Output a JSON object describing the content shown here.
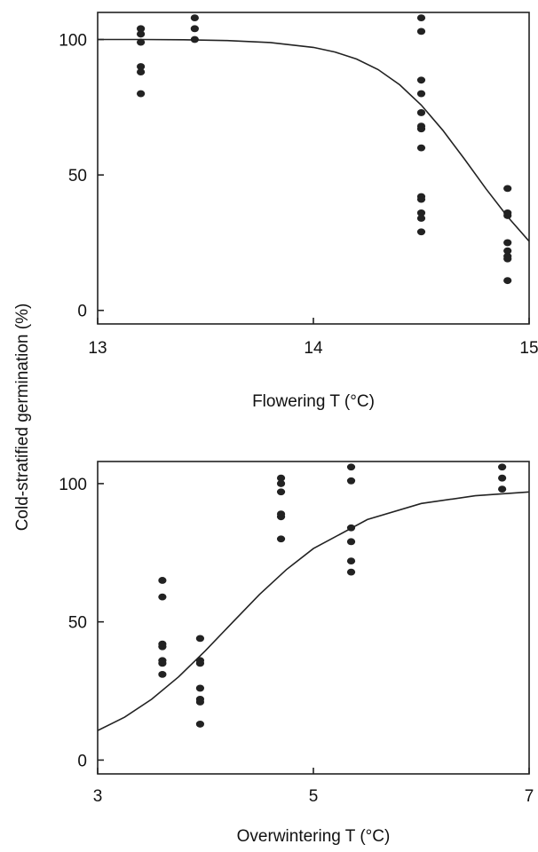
{
  "shared_ylabel": "Cold-stratified germination (%)",
  "chart_data": [
    {
      "type": "scatter",
      "title": "",
      "xlabel": "Flowering T (°C)",
      "ylabel": "Cold-stratified germination (%)",
      "xlim": [
        13,
        15
      ],
      "ylim": [
        -5,
        110
      ],
      "xticks": [
        13,
        14,
        15
      ],
      "yticks": [
        0,
        50,
        100
      ],
      "grid": false,
      "legend": "none",
      "series": [
        {
          "points": [
            [
              13.2,
              104
            ],
            [
              13.2,
              102
            ],
            [
              13.2,
              99
            ],
            [
              13.2,
              90
            ],
            [
              13.2,
              88
            ],
            [
              13.2,
              80
            ],
            [
              13.45,
              108
            ],
            [
              13.45,
              104
            ],
            [
              13.45,
              100
            ],
            [
              14.5,
              108
            ],
            [
              14.5,
              103
            ],
            [
              14.5,
              85
            ],
            [
              14.5,
              80
            ],
            [
              14.5,
              73
            ],
            [
              14.5,
              68
            ],
            [
              14.5,
              67
            ],
            [
              14.5,
              60
            ],
            [
              14.5,
              42
            ],
            [
              14.5,
              41
            ],
            [
              14.5,
              36
            ],
            [
              14.5,
              34
            ],
            [
              14.5,
              29
            ],
            [
              14.9,
              45
            ],
            [
              14.9,
              36
            ],
            [
              14.9,
              35
            ],
            [
              14.9,
              25
            ],
            [
              14.9,
              22
            ],
            [
              14.9,
              20
            ],
            [
              14.9,
              19
            ],
            [
              14.9,
              11
            ]
          ]
        },
        {
          "kind": "fitted-curve",
          "points": [
            [
              13.0,
              100.0
            ],
            [
              13.2,
              100.0
            ],
            [
              13.4,
              99.9
            ],
            [
              13.6,
              99.6
            ],
            [
              13.8,
              98.9
            ],
            [
              14.0,
              97.1
            ],
            [
              14.1,
              95.4
            ],
            [
              14.2,
              92.8
            ],
            [
              14.3,
              88.9
            ],
            [
              14.4,
              83.3
            ],
            [
              14.5,
              75.8
            ],
            [
              14.6,
              66.5
            ],
            [
              14.7,
              55.9
            ],
            [
              14.8,
              44.9
            ],
            [
              14.9,
              34.6
            ],
            [
              15.0,
              25.5
            ]
          ]
        }
      ]
    },
    {
      "type": "scatter",
      "title": "",
      "xlabel": "Overwintering T (°C)",
      "ylabel": "Cold-stratified germination (%)",
      "xlim": [
        3,
        7
      ],
      "ylim": [
        -5,
        108
      ],
      "xticks": [
        3,
        5,
        7
      ],
      "yticks": [
        0,
        50,
        100
      ],
      "grid": false,
      "legend": "none",
      "series": [
        {
          "points": [
            [
              3.6,
              65
            ],
            [
              3.6,
              59
            ],
            [
              3.6,
              42
            ],
            [
              3.6,
              41
            ],
            [
              3.6,
              36
            ],
            [
              3.6,
              35
            ],
            [
              3.6,
              31
            ],
            [
              3.95,
              44
            ],
            [
              3.95,
              36
            ],
            [
              3.95,
              35
            ],
            [
              3.95,
              26
            ],
            [
              3.95,
              22
            ],
            [
              3.95,
              21
            ],
            [
              3.95,
              13
            ],
            [
              4.7,
              102
            ],
            [
              4.7,
              100
            ],
            [
              4.7,
              97
            ],
            [
              4.7,
              89
            ],
            [
              4.7,
              88
            ],
            [
              4.7,
              80
            ],
            [
              5.35,
              106
            ],
            [
              5.35,
              101
            ],
            [
              5.35,
              84
            ],
            [
              5.35,
              79
            ],
            [
              5.35,
              72
            ],
            [
              5.35,
              68
            ],
            [
              6.75,
              106
            ],
            [
              6.75,
              102
            ],
            [
              6.75,
              98
            ]
          ]
        },
        {
          "kind": "fitted-curve",
          "points": [
            [
              3.0,
              10.7
            ],
            [
              3.25,
              15.5
            ],
            [
              3.5,
              22.0
            ],
            [
              3.75,
              30.1
            ],
            [
              4.0,
              39.6
            ],
            [
              4.25,
              49.8
            ],
            [
              4.5,
              59.9
            ],
            [
              4.75,
              68.9
            ],
            [
              5.0,
              76.5
            ],
            [
              5.5,
              87.0
            ],
            [
              6.0,
              92.8
            ],
            [
              6.5,
              95.6
            ],
            [
              7.0,
              97.0
            ]
          ]
        }
      ]
    }
  ]
}
